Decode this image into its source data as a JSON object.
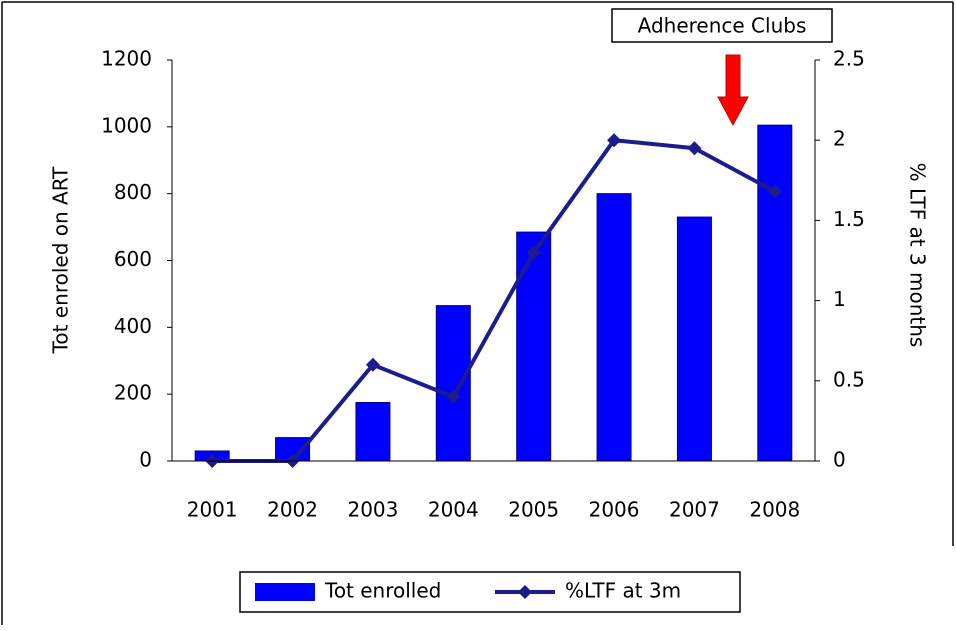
{
  "chart_data": {
    "type": "bar",
    "annotation": "Adherence Clubs",
    "y_label": "Tot enroled on ART",
    "y2_label": "% LTF at 3 months",
    "categories": [
      "2001",
      "2002",
      "2003",
      "2004",
      "2005",
      "2006",
      "2007",
      "2008"
    ],
    "series": [
      {
        "name": "Tot enrolled",
        "type": "bar",
        "color": "#0000ff",
        "axis": "y",
        "values": [
          30,
          70,
          175,
          465,
          685,
          800,
          730,
          1005
        ]
      },
      {
        "name": "%LTF at 3m",
        "type": "line",
        "color": "#1c1c8c",
        "axis": "y2",
        "values": [
          0,
          0,
          0.6,
          0.4,
          1.3,
          2.0,
          1.95,
          1.68
        ]
      }
    ],
    "ylim": [
      0,
      1200
    ],
    "yticks": [
      0,
      200,
      400,
      600,
      800,
      1000,
      1200
    ],
    "y2lim": [
      0,
      2.5
    ],
    "y2ticks": [
      0,
      0.5,
      1,
      1.5,
      2,
      2.5
    ],
    "legend": "bottom"
  }
}
